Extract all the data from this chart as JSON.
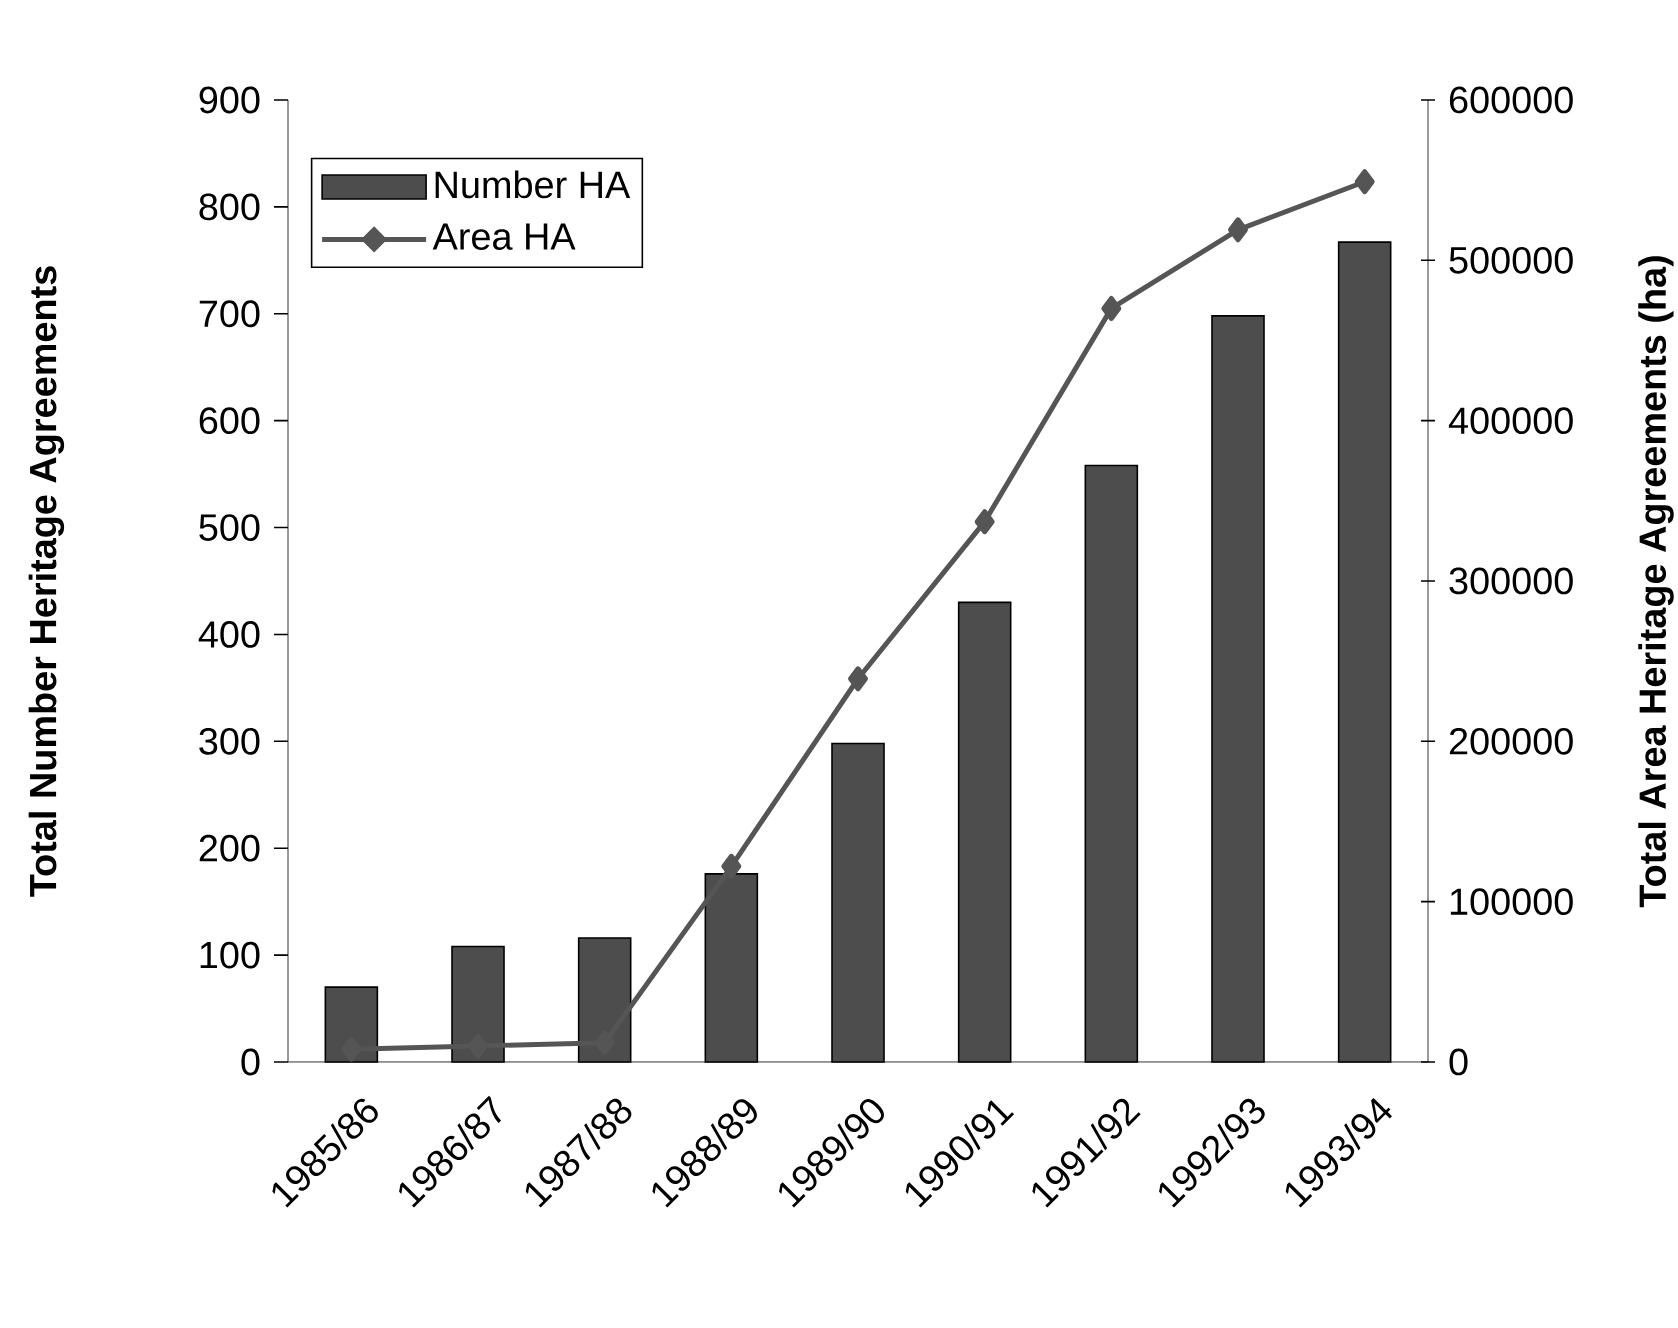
{
  "chart_data": {
    "type": "bar",
    "ylabel": "Total Number Heritage Agreements",
    "y2label": "Total Area Heritage Agreements (ha)",
    "categories": [
      "1985/86",
      "1986/87",
      "1987/88",
      "1988/89",
      "1989/90",
      "1990/91",
      "1991/92",
      "1992/93",
      "1993/94"
    ],
    "series": [
      {
        "name": "Number HA",
        "color": "#4d4d4d",
        "values": [
          70,
          108,
          116,
          176,
          298,
          430,
          558,
          698,
          767
        ]
      },
      {
        "name": "Area HA",
        "type": "line",
        "axis": "y2",
        "color": "#555555",
        "marker": "diamond",
        "line_style": "solid",
        "values": [
          8000,
          10000,
          12000,
          122000,
          239000,
          337000,
          470000,
          519000,
          549000
        ]
      }
    ],
    "ylim": [
      0,
      900
    ],
    "yticks": [
      0,
      100,
      200,
      300,
      400,
      500,
      600,
      700,
      800,
      900
    ],
    "y2lim": [
      0,
      600000
    ],
    "y2ticks": [
      0,
      100000,
      200000,
      300000,
      400000,
      500000,
      600000
    ],
    "grid": false,
    "legend": "top left"
  }
}
